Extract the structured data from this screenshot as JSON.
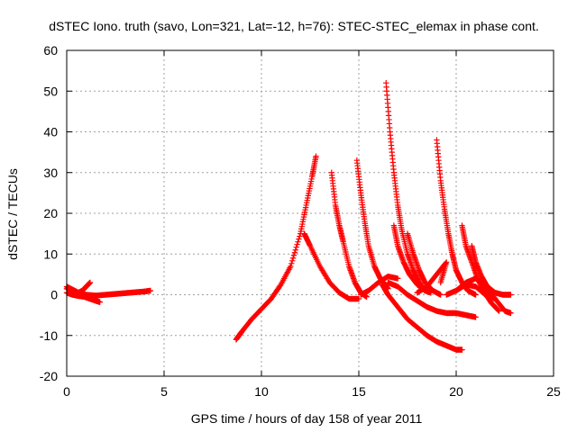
{
  "chart_data": {
    "type": "scatter",
    "title": "dSTEC Iono. truth (savo, Lon=321, Lat=-12, h=76): STEC-STEC_elemax in phase cont.",
    "xlabel": "GPS time / hours of day 158 of year 2011",
    "ylabel": "dSTEC  / TECUs",
    "xlim": [
      0,
      25
    ],
    "ylim": [
      -20,
      60
    ],
    "xticks": [
      0,
      5,
      10,
      15,
      20,
      25
    ],
    "yticks": [
      -20,
      -10,
      0,
      10,
      20,
      30,
      40,
      50,
      60
    ],
    "grid": true,
    "marker": "+",
    "color": "#ff0000",
    "series": [
      {
        "x": [
          0.0,
          0.2,
          0.4,
          0.6,
          0.8,
          1.0,
          1.2
        ],
        "y": [
          2.0,
          1.5,
          1.0,
          0.5,
          1.0,
          2.0,
          3.0
        ]
      },
      {
        "x": [
          0.0,
          0.3,
          0.6,
          0.9,
          1.2,
          1.5,
          1.7
        ],
        "y": [
          0.5,
          0.0,
          -0.3,
          -0.5,
          -1.0,
          -1.5,
          -1.8
        ]
      },
      {
        "x": [
          0.0,
          0.5,
          1.0,
          1.5,
          2.0,
          2.5,
          3.0,
          3.5,
          4.0,
          4.3
        ],
        "y": [
          1.5,
          0.5,
          0.0,
          -0.2,
          0.0,
          0.2,
          0.4,
          0.6,
          0.8,
          1.0
        ]
      },
      {
        "x": [
          8.7,
          9.0,
          9.5,
          10.0,
          10.5,
          11.0,
          11.5,
          12.0,
          12.3,
          12.6,
          12.8
        ],
        "y": [
          -11.0,
          -9.0,
          -6.0,
          -3.5,
          -1.0,
          2.5,
          7.0,
          15.0,
          22.0,
          29.0,
          34.0
        ]
      },
      {
        "x": [
          12.2,
          12.5,
          13.0,
          13.5,
          14.0,
          14.5,
          15.0
        ],
        "y": [
          15.0,
          12.0,
          7.0,
          3.0,
          0.5,
          -1.0,
          -1.0
        ]
      },
      {
        "x": [
          13.6,
          13.8,
          14.0,
          14.2,
          14.5,
          14.8,
          15.1,
          15.4
        ],
        "y": [
          30.0,
          22.0,
          17.0,
          13.0,
          7.0,
          3.0,
          0.5,
          -0.5
        ]
      },
      {
        "x": [
          14.9,
          15.1,
          15.3,
          15.5,
          15.8,
          16.1,
          16.5
        ],
        "y": [
          33.0,
          25.0,
          18.0,
          12.0,
          7.0,
          4.0,
          1.5
        ]
      },
      {
        "x": [
          15.1,
          15.5,
          16.0,
          16.5,
          17.0
        ],
        "y": [
          0.0,
          1.0,
          3.0,
          4.5,
          4.0
        ]
      },
      {
        "x": [
          16.4,
          16.6,
          16.8,
          17.0,
          17.2,
          17.5,
          17.8,
          18.1,
          18.4
        ],
        "y": [
          52.0,
          40.0,
          30.0,
          22.0,
          16.0,
          10.0,
          6.0,
          3.0,
          1.0
        ]
      },
      {
        "x": [
          16.8,
          17.0,
          17.3,
          17.6,
          18.0,
          18.4,
          18.7
        ],
        "y": [
          17.0,
          12.0,
          8.0,
          5.0,
          2.5,
          1.0,
          0.5
        ]
      },
      {
        "x": [
          16.2,
          16.5,
          17.0,
          17.5,
          18.0,
          18.5,
          19.0,
          19.5,
          20.0,
          20.3
        ],
        "y": [
          2.5,
          0.0,
          -3.0,
          -6.0,
          -8.0,
          -10.0,
          -11.5,
          -12.5,
          -13.5,
          -13.5
        ]
      },
      {
        "x": [
          17.5,
          17.8,
          18.1,
          18.4,
          18.8,
          19.2
        ],
        "y": [
          15.0,
          10.0,
          6.0,
          3.0,
          1.0,
          0.0
        ]
      },
      {
        "x": [
          16.5,
          17.0,
          17.5,
          18.0,
          18.5,
          19.0,
          19.5,
          20.0,
          20.5,
          21.0
        ],
        "y": [
          3.0,
          2.0,
          0.0,
          -1.5,
          -3.0,
          -4.0,
          -4.5,
          -4.5,
          -5.0,
          -5.5
        ]
      },
      {
        "x": [
          19.0,
          19.2,
          19.4,
          19.6,
          19.8,
          20.0,
          20.3,
          20.6,
          21.0
        ],
        "y": [
          38.0,
          28.0,
          21.0,
          15.0,
          10.0,
          6.0,
          3.0,
          1.0,
          0.0
        ]
      },
      {
        "x": [
          18.0,
          18.5,
          19.0,
          19.5,
          19.2
        ],
        "y": [
          0.5,
          2.0,
          5.0,
          8.0,
          3.0
        ]
      },
      {
        "x": [
          20.3,
          20.5,
          20.8,
          21.1,
          21.4,
          21.8,
          22.2
        ],
        "y": [
          17.0,
          12.0,
          8.0,
          4.0,
          1.0,
          -2.0,
          -4.0
        ]
      },
      {
        "x": [
          20.0,
          20.5,
          21.0,
          21.5,
          22.0,
          22.5,
          22.8
        ],
        "y": [
          1.0,
          3.0,
          4.0,
          2.0,
          -1.0,
          -4.0,
          -4.5
        ]
      },
      {
        "x": [
          20.8,
          21.0,
          21.3,
          21.6,
          22.0,
          22.4,
          22.8
        ],
        "y": [
          12.0,
          8.0,
          4.5,
          2.0,
          0.5,
          0.0,
          0.0
        ]
      },
      {
        "x": [
          19.5,
          20.0,
          20.5,
          21.0,
          21.5,
          22.0
        ],
        "y": [
          0.0,
          1.0,
          2.5,
          2.0,
          0.0,
          -1.0
        ]
      }
    ]
  }
}
